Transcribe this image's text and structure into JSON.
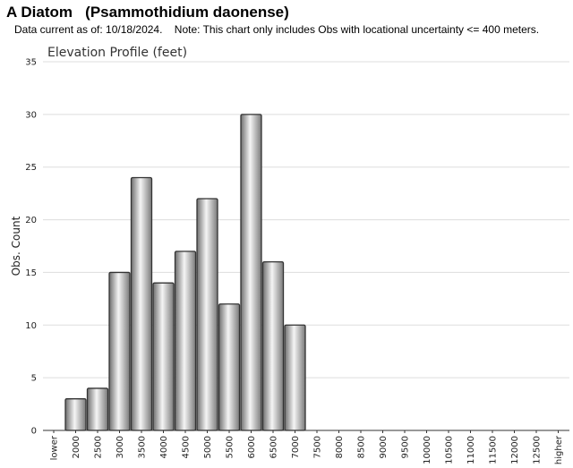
{
  "header": {
    "title": "A Diatom   (Psammothidium daonense)",
    "subtitle": "Data current as of: 10/18/2024.    Note: This chart only includes Obs with locational uncertainty <= 400 meters."
  },
  "chart_data": {
    "type": "bar",
    "title": "Elevation Profile (feet)",
    "xlabel": "",
    "ylabel": "Obs. Count",
    "ylim": [
      0,
      35
    ],
    "yticks": [
      0,
      5,
      10,
      15,
      20,
      25,
      30,
      35
    ],
    "grid": true,
    "categories": [
      "lower",
      "2000",
      "2500",
      "3000",
      "3500",
      "4000",
      "4500",
      "5000",
      "5500",
      "6000",
      "6500",
      "7000",
      "7500",
      "8000",
      "8500",
      "9000",
      "9500",
      "10000",
      "10500",
      "11000",
      "11500",
      "12000",
      "12500",
      "higher"
    ],
    "values": [
      0,
      3,
      4,
      15,
      24,
      14,
      17,
      22,
      12,
      30,
      16,
      10,
      0,
      0,
      0,
      0,
      0,
      0,
      0,
      0,
      0,
      0,
      0,
      0
    ],
    "colors": {
      "bar_light": "#f2f2f2",
      "bar_dark": "#7a7a7a",
      "bar_edge": "#333333",
      "grid": "#dddddd"
    }
  }
}
